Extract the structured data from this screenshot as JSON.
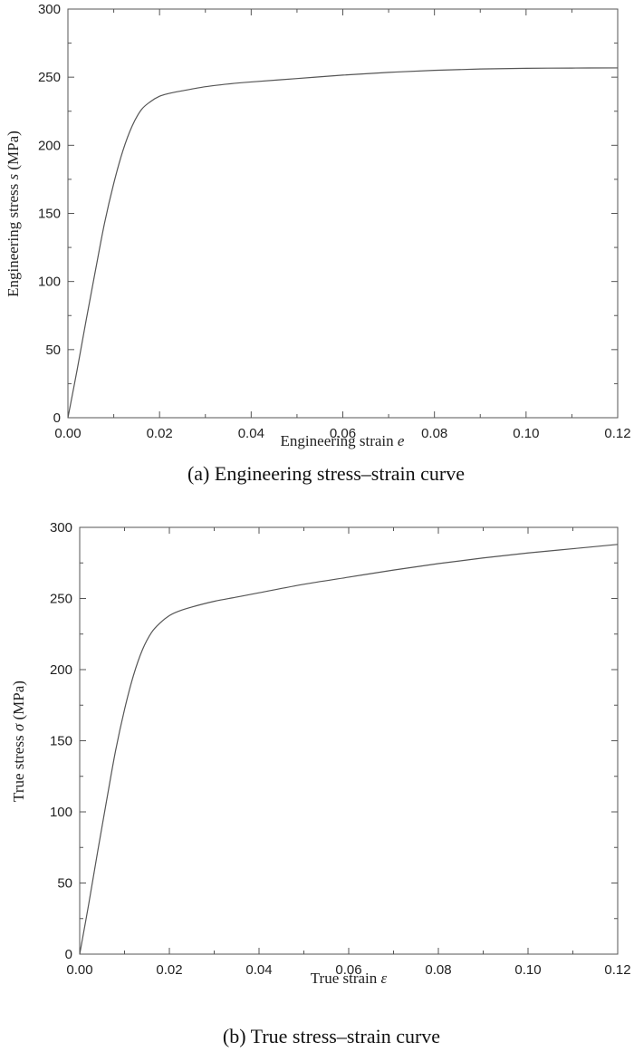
{
  "chart_data": [
    {
      "type": "line",
      "caption": "(a) Engineering stress–strain curve",
      "xlabel_main": "Engineering strain ",
      "xlabel_sym": "e",
      "ylabel_main": "Engineering stress ",
      "ylabel_sym": "s",
      "ylabel_unit": " (MPa)",
      "xlim": [
        0,
        0.12
      ],
      "ylim": [
        0,
        300
      ],
      "xticks": [
        "0.00",
        "0.02",
        "0.04",
        "0.06",
        "0.08",
        "0.10",
        "0.12"
      ],
      "yticks": [
        "0",
        "50",
        "100",
        "150",
        "200",
        "250",
        "300"
      ],
      "grid": false,
      "x": [
        0,
        0.002,
        0.004,
        0.006,
        0.008,
        0.01,
        0.012,
        0.014,
        0.016,
        0.018,
        0.02,
        0.022,
        0.025,
        0.03,
        0.035,
        0.04,
        0.05,
        0.06,
        0.07,
        0.08,
        0.09,
        0.1,
        0.11,
        0.12
      ],
      "y": [
        0,
        35,
        72,
        108,
        143,
        172,
        196,
        214,
        226,
        232,
        236,
        238,
        240,
        243,
        245,
        246.5,
        249,
        251.5,
        253.5,
        255,
        256,
        256.5,
        256.7,
        256.8
      ]
    },
    {
      "type": "line",
      "caption": "(b) True stress–strain curve",
      "xlabel_main": "True strain ",
      "xlabel_sym": "ε",
      "ylabel_main": "True stress ",
      "ylabel_sym": "σ",
      "ylabel_unit": " (MPa)",
      "xlim": [
        0,
        0.12
      ],
      "ylim": [
        0,
        300
      ],
      "xticks": [
        "0.00",
        "0.02",
        "0.04",
        "0.06",
        "0.08",
        "0.10",
        "0.12"
      ],
      "yticks": [
        "0",
        "50",
        "100",
        "150",
        "200",
        "250",
        "300"
      ],
      "grid": false,
      "x": [
        0,
        0.002,
        0.004,
        0.006,
        0.008,
        0.01,
        0.012,
        0.014,
        0.016,
        0.018,
        0.02,
        0.022,
        0.025,
        0.03,
        0.035,
        0.04,
        0.05,
        0.06,
        0.07,
        0.08,
        0.09,
        0.1,
        0.11,
        0.12
      ],
      "y": [
        0,
        35,
        72,
        108,
        143,
        172,
        196,
        214,
        226,
        233,
        238,
        241,
        244,
        248,
        251,
        254,
        260,
        265,
        270,
        274.5,
        278.5,
        282,
        285,
        288
      ]
    }
  ]
}
